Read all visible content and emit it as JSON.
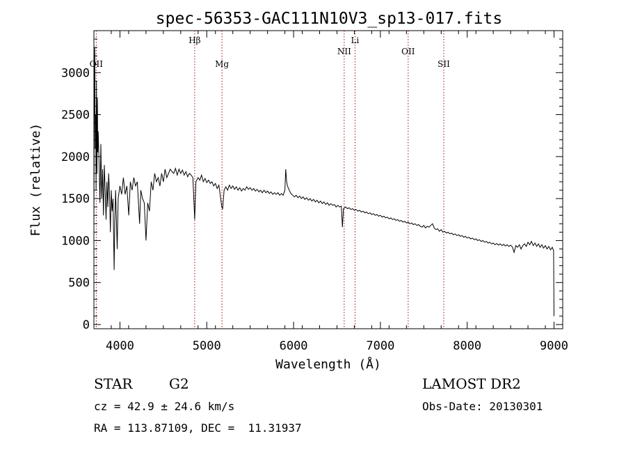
{
  "chart_data": {
    "type": "line",
    "title": "spec-56353-GAC111N10V3_sp13-017.fits",
    "xlabel": "Wavelength (Å)",
    "ylabel": "Flux (relative)",
    "xlim": [
      3700,
      9100
    ],
    "ylim": [
      -50,
      3500
    ],
    "xticks": [
      4000,
      5000,
      6000,
      7000,
      8000,
      9000
    ],
    "yticks": [
      0,
      500,
      1000,
      1500,
      2000,
      2500,
      3000
    ],
    "grid": false,
    "series": [
      {
        "color": "#000000",
        "points": [
          [
            3700,
            1200
          ],
          [
            3705,
            2800
          ],
          [
            3710,
            3300
          ],
          [
            3715,
            2100
          ],
          [
            3720,
            2500
          ],
          [
            3725,
            1600
          ],
          [
            3730,
            2900
          ],
          [
            3735,
            1800
          ],
          [
            3740,
            2700
          ],
          [
            3745,
            2050
          ],
          [
            3750,
            2300
          ],
          [
            3760,
            1900
          ],
          [
            3770,
            1450
          ],
          [
            3780,
            2150
          ],
          [
            3790,
            1500
          ],
          [
            3800,
            1850
          ],
          [
            3810,
            1300
          ],
          [
            3820,
            1900
          ],
          [
            3830,
            1600
          ],
          [
            3840,
            1250
          ],
          [
            3850,
            1700
          ],
          [
            3860,
            1400
          ],
          [
            3870,
            1800
          ],
          [
            3880,
            1550
          ],
          [
            3890,
            1100
          ],
          [
            3900,
            1600
          ],
          [
            3910,
            1350
          ],
          [
            3920,
            1500
          ],
          [
            3933,
            650
          ],
          [
            3940,
            1200
          ],
          [
            3950,
            1600
          ],
          [
            3968,
            900
          ],
          [
            3980,
            1500
          ],
          [
            4000,
            1650
          ],
          [
            4020,
            1550
          ],
          [
            4040,
            1750
          ],
          [
            4060,
            1550
          ],
          [
            4080,
            1650
          ],
          [
            4101,
            1300
          ],
          [
            4120,
            1700
          ],
          [
            4140,
            1600
          ],
          [
            4160,
            1750
          ],
          [
            4180,
            1650
          ],
          [
            4200,
            1700
          ],
          [
            4226,
            1200
          ],
          [
            4240,
            1600
          ],
          [
            4260,
            1500
          ],
          [
            4280,
            1450
          ],
          [
            4300,
            1000
          ],
          [
            4320,
            1450
          ],
          [
            4340,
            1350
          ],
          [
            4360,
            1700
          ],
          [
            4380,
            1600
          ],
          [
            4400,
            1800
          ],
          [
            4420,
            1700
          ],
          [
            4440,
            1750
          ],
          [
            4460,
            1650
          ],
          [
            4480,
            1800
          ],
          [
            4500,
            1700
          ],
          [
            4520,
            1850
          ],
          [
            4540,
            1750
          ],
          [
            4560,
            1800
          ],
          [
            4580,
            1850
          ],
          [
            4600,
            1820
          ],
          [
            4620,
            1800
          ],
          [
            4640,
            1860
          ],
          [
            4660,
            1780
          ],
          [
            4680,
            1850
          ],
          [
            4700,
            1800
          ],
          [
            4720,
            1840
          ],
          [
            4740,
            1780
          ],
          [
            4760,
            1820
          ],
          [
            4780,
            1760
          ],
          [
            4800,
            1800
          ],
          [
            4820,
            1780
          ],
          [
            4840,
            1750
          ],
          [
            4861,
            1250
          ],
          [
            4875,
            1700
          ],
          [
            4900,
            1750
          ],
          [
            4920,
            1720
          ],
          [
            4940,
            1780
          ],
          [
            4960,
            1700
          ],
          [
            4980,
            1740
          ],
          [
            5000,
            1690
          ],
          [
            5020,
            1720
          ],
          [
            5040,
            1680
          ],
          [
            5060,
            1700
          ],
          [
            5080,
            1650
          ],
          [
            5100,
            1680
          ],
          [
            5120,
            1620
          ],
          [
            5140,
            1660
          ],
          [
            5167,
            1450
          ],
          [
            5172,
            1400
          ],
          [
            5183,
            1380
          ],
          [
            5200,
            1600
          ],
          [
            5220,
            1640
          ],
          [
            5240,
            1600
          ],
          [
            5260,
            1660
          ],
          [
            5280,
            1620
          ],
          [
            5300,
            1650
          ],
          [
            5320,
            1610
          ],
          [
            5340,
            1640
          ],
          [
            5360,
            1600
          ],
          [
            5380,
            1630
          ],
          [
            5400,
            1590
          ],
          [
            5420,
            1620
          ],
          [
            5440,
            1600
          ],
          [
            5460,
            1640
          ],
          [
            5480,
            1610
          ],
          [
            5500,
            1630
          ],
          [
            5520,
            1600
          ],
          [
            5540,
            1620
          ],
          [
            5560,
            1590
          ],
          [
            5580,
            1610
          ],
          [
            5600,
            1580
          ],
          [
            5620,
            1600
          ],
          [
            5640,
            1570
          ],
          [
            5660,
            1600
          ],
          [
            5680,
            1570
          ],
          [
            5700,
            1590
          ],
          [
            5720,
            1560
          ],
          [
            5740,
            1580
          ],
          [
            5760,
            1550
          ],
          [
            5780,
            1570
          ],
          [
            5800,
            1550
          ],
          [
            5820,
            1570
          ],
          [
            5840,
            1540
          ],
          [
            5860,
            1560
          ],
          [
            5880,
            1540
          ],
          [
            5900,
            1600
          ],
          [
            5910,
            1850
          ],
          [
            5920,
            1700
          ],
          [
            5930,
            1650
          ],
          [
            5950,
            1600
          ],
          [
            5970,
            1560
          ],
          [
            5990,
            1540
          ],
          [
            6010,
            1520
          ],
          [
            6030,
            1540
          ],
          [
            6050,
            1510
          ],
          [
            6070,
            1530
          ],
          [
            6090,
            1500
          ],
          [
            6110,
            1520
          ],
          [
            6130,
            1490
          ],
          [
            6150,
            1510
          ],
          [
            6170,
            1480
          ],
          [
            6190,
            1500
          ],
          [
            6210,
            1470
          ],
          [
            6230,
            1490
          ],
          [
            6250,
            1460
          ],
          [
            6270,
            1480
          ],
          [
            6290,
            1450
          ],
          [
            6310,
            1470
          ],
          [
            6330,
            1440
          ],
          [
            6350,
            1460
          ],
          [
            6370,
            1430
          ],
          [
            6390,
            1450
          ],
          [
            6410,
            1420
          ],
          [
            6430,
            1440
          ],
          [
            6450,
            1420
          ],
          [
            6470,
            1430
          ],
          [
            6490,
            1400
          ],
          [
            6510,
            1420
          ],
          [
            6530,
            1400
          ],
          [
            6550,
            1410
          ],
          [
            6563,
            1160
          ],
          [
            6575,
            1380
          ],
          [
            6600,
            1400
          ],
          [
            6620,
            1380
          ],
          [
            6640,
            1390
          ],
          [
            6660,
            1370
          ],
          [
            6680,
            1380
          ],
          [
            6700,
            1360
          ],
          [
            6720,
            1370
          ],
          [
            6740,
            1350
          ],
          [
            6760,
            1360
          ],
          [
            6780,
            1340
          ],
          [
            6800,
            1350
          ],
          [
            6820,
            1330
          ],
          [
            6840,
            1340
          ],
          [
            6860,
            1320
          ],
          [
            6880,
            1330
          ],
          [
            6900,
            1310
          ],
          [
            6920,
            1320
          ],
          [
            6940,
            1300
          ],
          [
            6960,
            1310
          ],
          [
            6980,
            1290
          ],
          [
            7000,
            1300
          ],
          [
            7020,
            1280
          ],
          [
            7040,
            1290
          ],
          [
            7060,
            1270
          ],
          [
            7080,
            1280
          ],
          [
            7100,
            1260
          ],
          [
            7120,
            1270
          ],
          [
            7140,
            1250
          ],
          [
            7160,
            1260
          ],
          [
            7180,
            1240
          ],
          [
            7200,
            1250
          ],
          [
            7220,
            1230
          ],
          [
            7240,
            1240
          ],
          [
            7260,
            1220
          ],
          [
            7280,
            1230
          ],
          [
            7300,
            1210
          ],
          [
            7320,
            1220
          ],
          [
            7340,
            1200
          ],
          [
            7360,
            1210
          ],
          [
            7380,
            1190
          ],
          [
            7400,
            1200
          ],
          [
            7420,
            1180
          ],
          [
            7440,
            1190
          ],
          [
            7460,
            1170
          ],
          [
            7480,
            1160
          ],
          [
            7500,
            1180
          ],
          [
            7520,
            1150
          ],
          [
            7540,
            1170
          ],
          [
            7560,
            1160
          ],
          [
            7580,
            1180
          ],
          [
            7600,
            1200
          ],
          [
            7620,
            1150
          ],
          [
            7640,
            1130
          ],
          [
            7660,
            1140
          ],
          [
            7680,
            1110
          ],
          [
            7700,
            1130
          ],
          [
            7720,
            1100
          ],
          [
            7740,
            1110
          ],
          [
            7760,
            1090
          ],
          [
            7780,
            1100
          ],
          [
            7800,
            1080
          ],
          [
            7820,
            1090
          ],
          [
            7840,
            1070
          ],
          [
            7860,
            1080
          ],
          [
            7880,
            1060
          ],
          [
            7900,
            1070
          ],
          [
            7920,
            1050
          ],
          [
            7940,
            1060
          ],
          [
            7960,
            1040
          ],
          [
            7980,
            1050
          ],
          [
            8000,
            1030
          ],
          [
            8020,
            1040
          ],
          [
            8040,
            1020
          ],
          [
            8060,
            1030
          ],
          [
            8080,
            1010
          ],
          [
            8100,
            1020
          ],
          [
            8120,
            1000
          ],
          [
            8140,
            1010
          ],
          [
            8160,
            990
          ],
          [
            8180,
            1000
          ],
          [
            8200,
            980
          ],
          [
            8220,
            990
          ],
          [
            8240,
            970
          ],
          [
            8260,
            980
          ],
          [
            8280,
            960
          ],
          [
            8300,
            970
          ],
          [
            8320,
            950
          ],
          [
            8340,
            965
          ],
          [
            8360,
            945
          ],
          [
            8380,
            960
          ],
          [
            8400,
            940
          ],
          [
            8420,
            955
          ],
          [
            8440,
            935
          ],
          [
            8460,
            950
          ],
          [
            8480,
            930
          ],
          [
            8500,
            945
          ],
          [
            8520,
            925
          ],
          [
            8540,
            860
          ],
          [
            8560,
            940
          ],
          [
            8580,
            920
          ],
          [
            8600,
            950
          ],
          [
            8620,
            900
          ],
          [
            8640,
            940
          ],
          [
            8660,
            960
          ],
          [
            8680,
            930
          ],
          [
            8700,
            980
          ],
          [
            8720,
            950
          ],
          [
            8740,
            990
          ],
          [
            8760,
            940
          ],
          [
            8780,
            970
          ],
          [
            8800,
            930
          ],
          [
            8820,
            960
          ],
          [
            8840,
            920
          ],
          [
            8860,
            950
          ],
          [
            8880,
            910
          ],
          [
            8900,
            940
          ],
          [
            8920,
            900
          ],
          [
            8940,
            930
          ],
          [
            8960,
            890
          ],
          [
            8980,
            920
          ],
          [
            8995,
            880
          ],
          [
            9000,
            100
          ]
        ]
      }
    ],
    "line_markers": [
      {
        "label": "OII",
        "x": 3727,
        "label_row": 3
      },
      {
        "label": "Hβ",
        "x": 4861,
        "label_row": 1
      },
      {
        "label": "Mg",
        "x": 5175,
        "label_row": 3
      },
      {
        "label": "NII",
        "x": 6583,
        "label_row": 2
      },
      {
        "label": "Li",
        "x": 6708,
        "label_row": 1
      },
      {
        "label": "OII",
        "x": 7320,
        "label_row": 2
      },
      {
        "label": "SII",
        "x": 7730,
        "label_row": 3
      }
    ],
    "marker_color": "#aa0000"
  },
  "info": {
    "class": "STAR",
    "subclass": "G2",
    "survey": "LAMOST DR2",
    "cz": "cz = 42.9 ± 24.6 km/s",
    "obsdate": "Obs-Date: 20130301",
    "radec": "RA = 113.87109, DEC =  11.31937"
  }
}
